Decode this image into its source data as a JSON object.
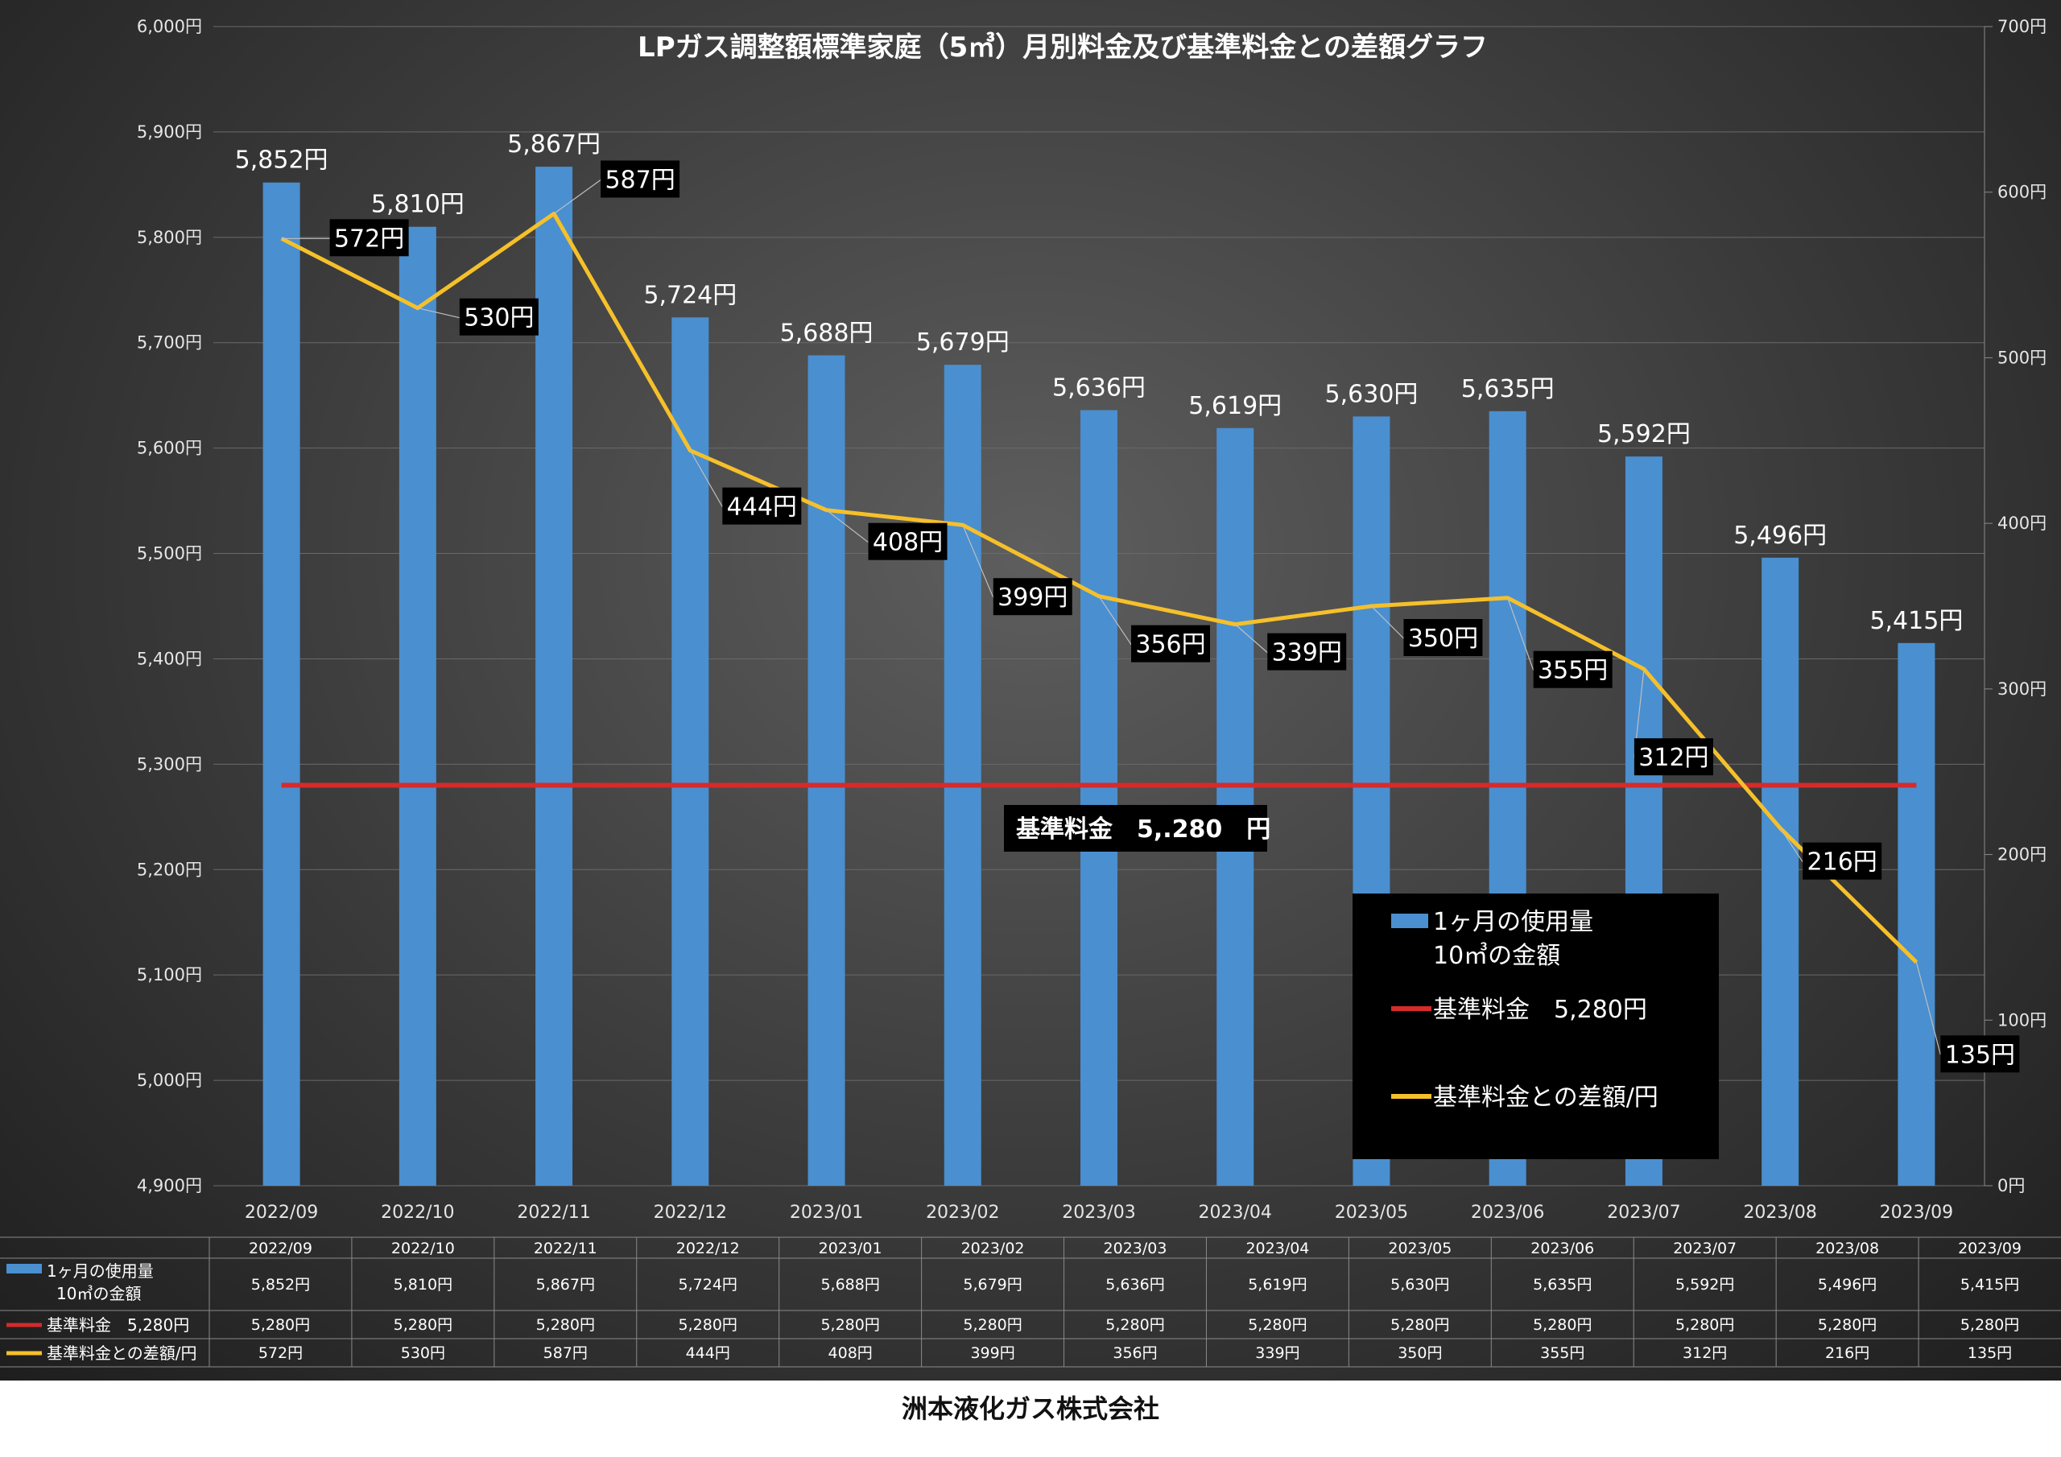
{
  "chart_data": {
    "type": "bar",
    "title": "LPガス調整額標準家庭（5㎥）月別料金及び基準料金との差額グラフ",
    "categories": [
      "2022/09",
      "2022/10",
      "2022/11",
      "2022/12",
      "2023/01",
      "2023/02",
      "2023/03",
      "2023/04",
      "2023/05",
      "2023/06",
      "2023/07",
      "2023/08",
      "2023/09"
    ],
    "series": [
      {
        "name": "1ヶ月の使用量 10㎥の金額",
        "kind": "bar",
        "axis": "left",
        "color": "#4a8fd0",
        "values": [
          5852,
          5810,
          5867,
          5724,
          5688,
          5679,
          5636,
          5619,
          5630,
          5635,
          5592,
          5496,
          5415
        ],
        "labels": [
          "5,852円",
          "5,810円",
          "5,867円",
          "5,724円",
          "5,688円",
          "5,679円",
          "5,636円",
          "5,619円",
          "5,630円",
          "5,635円",
          "5,592円",
          "5,496円",
          "5,415円"
        ]
      },
      {
        "name": "基準料金 5,280円",
        "kind": "line",
        "axis": "left",
        "color": "#d42b2b",
        "values": [
          5280,
          5280,
          5280,
          5280,
          5280,
          5280,
          5280,
          5280,
          5280,
          5280,
          5280,
          5280,
          5280
        ]
      },
      {
        "name": "基準料金との差額/円",
        "kind": "line",
        "axis": "right",
        "color": "#f5c02a",
        "values": [
          572,
          530,
          587,
          444,
          408,
          399,
          356,
          339,
          350,
          355,
          312,
          216,
          135
        ],
        "labels": [
          "572円",
          "530円",
          "587円",
          "444円",
          "408円",
          "399円",
          "356円",
          "339円",
          "350円",
          "355円",
          "312円",
          "216円",
          "135円"
        ]
      }
    ],
    "y_left": {
      "min": 4900,
      "max": 6000,
      "step": 100,
      "tick_labels": [
        "4,900円",
        "5,000円",
        "5,100円",
        "5,200円",
        "5,300円",
        "5,400円",
        "5,500円",
        "5,600円",
        "5,700円",
        "5,800円",
        "5,900円",
        "6,000円"
      ]
    },
    "y_right": {
      "min": 0,
      "max": 700,
      "step": 100,
      "tick_labels": [
        "0円",
        "100円",
        "200円",
        "300円",
        "400円",
        "500円",
        "600円",
        "700円"
      ]
    },
    "annotation": "基準料金　5,.280　円",
    "legend": {
      "placement": "lower-right",
      "bar_label_line1": "1ヶ月の使用量",
      "bar_label_line2": "10㎥の金額",
      "red_label": "基準料金　5,280円",
      "yellow_label": "基準料金との差額/円"
    },
    "data_table": {
      "row_headers": [
        "1ヶ月の使用量",
        "10㎥の金額",
        "基準料金　5,280円",
        "基準料金との差額/円"
      ],
      "rows": [
        [
          "5,852円",
          "5,810円",
          "5,867円",
          "5,724円",
          "5,688円",
          "5,679円",
          "5,636円",
          "5,619円",
          "5,630円",
          "5,635円",
          "5,592円",
          "5,496円",
          "5,415円"
        ],
        [
          "5,280円",
          "5,280円",
          "5,280円",
          "5,280円",
          "5,280円",
          "5,280円",
          "5,280円",
          "5,280円",
          "5,280円",
          "5,280円",
          "5,280円",
          "5,280円",
          "5,280円"
        ],
        [
          "572円",
          "530円",
          "587円",
          "444円",
          "408円",
          "399円",
          "356円",
          "339円",
          "350円",
          "355円",
          "312円",
          "216円",
          "135円"
        ]
      ]
    },
    "grid": true
  },
  "footer": "洲本液化ガス株式会社"
}
